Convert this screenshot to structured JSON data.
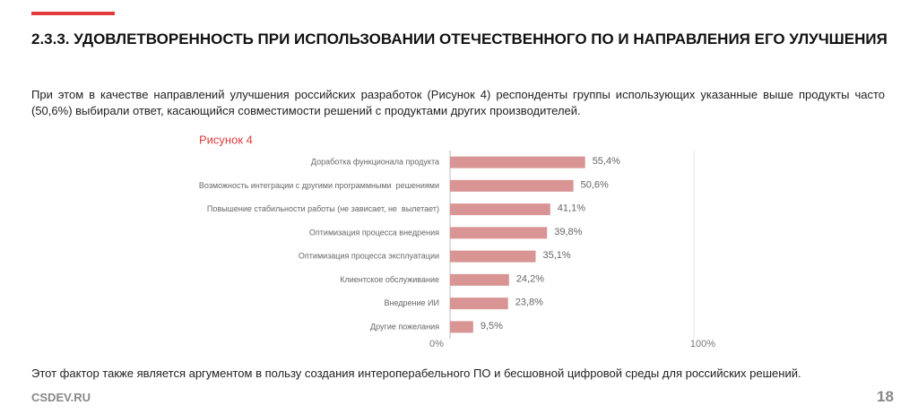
{
  "header": {
    "title": "2.3.3. УДОВЛЕТВОРЕННОСТЬ ПРИ ИСПОЛЬЗОВАНИИ ОТЕЧЕСТВЕННОГО ПО И НАПРАВЛЕНИЯ ЕГО УЛУЧШЕНИЯ"
  },
  "intro": "При этом в качестве направлений улучшения российских разработок (Рисунок 4) респонденты группы использующих указанные выше продукты часто (50,6%) выбирали ответ, касающийся совместимости решений с продуктами других производителей.",
  "chart_data": {
    "type": "hbar",
    "title": "Рисунок 4",
    "categories": [
      "Доработка функционала продукта",
      "Возможность интеграции с другими программными  решениями",
      "Повышение стабильности работы (не зависает, не  вылетает)",
      "Оптимизация процесса внедрения",
      "Оптимизация процесса эксплуатации",
      "Клиентское обслуживание",
      "Внедрение ИИ",
      "Другие пожелания"
    ],
    "values": [
      55.4,
      50.6,
      41.1,
      39.8,
      35.1,
      24.2,
      23.8,
      9.5
    ],
    "value_labels": [
      "55,4%",
      "50,6%",
      "41,1%",
      "39,8%",
      "35,1%",
      "24,2%",
      "23,8%",
      "9,5%"
    ],
    "color": "#d99594",
    "xlim": [
      0,
      100
    ],
    "xticks": [
      {
        "value": 0,
        "label": "0%"
      },
      {
        "value": 100,
        "label": "100%"
      }
    ]
  },
  "conclusion": "Этот фактор также является аргументом в пользу создания интероперабельного ПО и бесшовной цифровой среды для российских решений.",
  "footer": {
    "site": "CSDEV.RU",
    "page": "18"
  }
}
